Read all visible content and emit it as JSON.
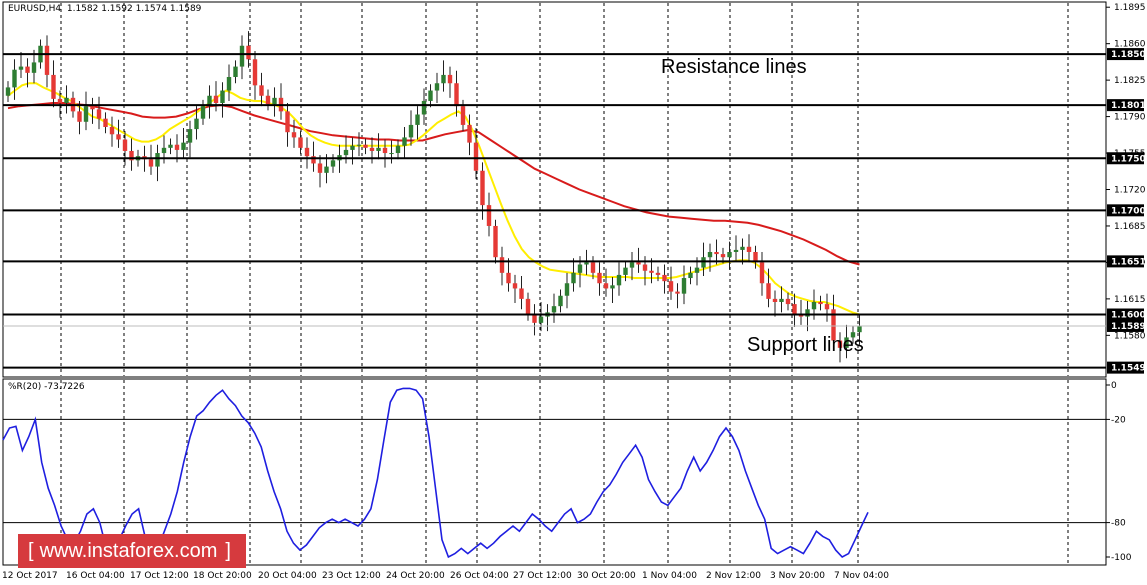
{
  "header": {
    "symbol": "EURUSD,H4",
    "ohlc": "1.1582 1.1592 1.1574 1.1589",
    "indicator": "%R(20) -73.7226"
  },
  "annotations": {
    "resistance": "Resistance lines",
    "support": "Support lines"
  },
  "watermark": {
    "bracket_open": "[",
    "text": "www.instaforex.com",
    "bracket_close": "]"
  },
  "colors": {
    "bull": "#2e7d32",
    "bear": "#e53935",
    "ma_fast": "#ffee00",
    "ma_slow": "#d81b1b",
    "wpr": "#1f1fe0",
    "level_line": "#000000",
    "tag_bg": "#000000",
    "tag_text": "#ffffff",
    "watermark_bg": "#d63a3e"
  },
  "chart_data": [
    {
      "type": "candlestick",
      "title": "EURUSD,H4",
      "ylim": [
        1.154,
        1.19
      ],
      "price_ticks": [
        "1.1895",
        "1.1860",
        "1.1825",
        "1.1790",
        "1.1755",
        "1.1720",
        "1.1685",
        "1.1650",
        "1.1615",
        "1.1580"
      ],
      "x_labels": [
        "12 Oct 2017",
        "16 Oct 04:00",
        "17 Oct 12:00",
        "18 Oct 20:00",
        "20 Oct 04:00",
        "23 Oct 12:00",
        "24 Oct 20:00",
        "26 Oct 04:00",
        "27 Oct 12:00",
        "30 Oct 20:00",
        "1 Nov 04:00",
        "2 Nov 12:00",
        "3 Nov 20:00",
        "7 Nov 04:00"
      ],
      "levels": [
        {
          "label": "1.1850",
          "value": 1.185
        },
        {
          "label": "1.1801",
          "value": 1.1801
        },
        {
          "label": "1.1750",
          "value": 1.175
        },
        {
          "label": "1.1700",
          "value": 1.17
        },
        {
          "label": "1.1651",
          "value": 1.1651
        },
        {
          "label": "1.1600",
          "value": 1.16
        },
        {
          "label": "1.1549",
          "value": 1.1549
        }
      ],
      "current": {
        "label": "1.1589",
        "value": 1.1589
      },
      "closes": [
        1.1818,
        1.1835,
        1.1838,
        1.1832,
        1.1842,
        1.1858,
        1.183,
        1.1807,
        1.1803,
        1.1808,
        1.1795,
        1.1785,
        1.18,
        1.1797,
        1.1788,
        1.178,
        1.1773,
        1.1768,
        1.1757,
        1.1748,
        1.1752,
        1.1749,
        1.1742,
        1.1755,
        1.176,
        1.1763,
        1.1758,
        1.1765,
        1.1778,
        1.1788,
        1.18,
        1.181,
        1.1803,
        1.1815,
        1.1828,
        1.1838,
        1.1858,
        1.1845,
        1.182,
        1.181,
        1.1802,
        1.1808,
        1.1795,
        1.1775,
        1.177,
        1.176,
        1.1752,
        1.1745,
        1.1736,
        1.1742,
        1.1748,
        1.1753,
        1.1758,
        1.1762,
        1.1763,
        1.176,
        1.1757,
        1.176,
        1.1755,
        1.1755,
        1.1762,
        1.177,
        1.1782,
        1.1792,
        1.1805,
        1.1815,
        1.1822,
        1.183,
        1.1822,
        1.18,
        1.1782,
        1.1765,
        1.1738,
        1.1705,
        1.1685,
        1.1655,
        1.164,
        1.163,
        1.1625,
        1.1615,
        1.16,
        1.1592,
        1.1598,
        1.1602,
        1.1608,
        1.1618,
        1.163,
        1.164,
        1.1648,
        1.165,
        1.164,
        1.163,
        1.1625,
        1.1628,
        1.1638,
        1.1645,
        1.165,
        1.1648,
        1.1642,
        1.164,
        1.1638,
        1.1632,
        1.1622,
        1.162,
        1.1635,
        1.164,
        1.1645,
        1.1655,
        1.166,
        1.1658,
        1.1655,
        1.166,
        1.1662,
        1.1665,
        1.166,
        1.165,
        1.163,
        1.1615,
        1.1612,
        1.1615,
        1.161,
        1.16,
        1.1598,
        1.1605,
        1.1612,
        1.161,
        1.1605,
        1.1575,
        1.1568,
        1.1578,
        1.1583,
        1.1589
      ],
      "ma_fast": [
        1.181,
        1.1815,
        1.182,
        1.1822,
        1.1822,
        1.1818,
        1.1815,
        1.1812,
        1.1808,
        1.1805,
        1.18,
        1.1795,
        1.179,
        1.1788,
        1.1784,
        1.178,
        1.1776,
        1.1772,
        1.1768,
        1.1766,
        1.1766,
        1.1768,
        1.1772,
        1.1778,
        1.1782,
        1.1786,
        1.179,
        1.1795,
        1.18,
        1.1805,
        1.181,
        1.1815,
        1.1812,
        1.1808,
        1.1806,
        1.1805,
        1.1805,
        1.1803,
        1.1801,
        1.1798,
        1.1793,
        1.1786,
        1.1778,
        1.1772,
        1.1768,
        1.1765,
        1.1763,
        1.1762,
        1.1762,
        1.1762,
        1.1762,
        1.1762,
        1.1762,
        1.1762,
        1.1762,
        1.1762,
        1.1762,
        1.1763,
        1.1767,
        1.1772,
        1.1778,
        1.1784,
        1.1788,
        1.1792,
        1.1795,
        1.179,
        1.1777,
        1.1761,
        1.1743,
        1.1725,
        1.1707,
        1.169,
        1.1675,
        1.1663,
        1.1655,
        1.165,
        1.1646,
        1.1643,
        1.1642,
        1.1641,
        1.164,
        1.1639,
        1.1638,
        1.1637,
        1.1636,
        1.1636,
        1.1636,
        1.1636,
        1.1636,
        1.1635,
        1.1635,
        1.1635,
        1.1635,
        1.1635,
        1.1635,
        1.1636,
        1.1638,
        1.164,
        1.1642,
        1.1644,
        1.1646,
        1.1648,
        1.165,
        1.1651,
        1.1652,
        1.1652,
        1.165,
        1.1645,
        1.1638,
        1.163,
        1.1625,
        1.162,
        1.1617,
        1.1615,
        1.1613,
        1.1612,
        1.1612,
        1.161,
        1.1608,
        1.1605,
        1.1602,
        1.16
      ],
      "ma_slow": [
        1.1798,
        1.18,
        1.1801,
        1.1802,
        1.1803,
        1.1803,
        1.1802,
        1.1801,
        1.1799,
        1.1797,
        1.1795,
        1.1793,
        1.179,
        1.1789,
        1.1789,
        1.179,
        1.1793,
        1.1797,
        1.18,
        1.1801,
        1.1799,
        1.1795,
        1.1791,
        1.1788,
        1.1785,
        1.1782,
        1.1779,
        1.1776,
        1.1774,
        1.1772,
        1.1771,
        1.177,
        1.1769,
        1.1768,
        1.1768,
        1.1767,
        1.1767,
        1.1767,
        1.177,
        1.1773,
        1.1775,
        1.1777,
        1.1775,
        1.1768,
        1.1761,
        1.1754,
        1.1747,
        1.174,
        1.1735,
        1.173,
        1.1725,
        1.172,
        1.1716,
        1.1712,
        1.1708,
        1.1704,
        1.1701,
        1.1698,
        1.1696,
        1.1694,
        1.1693,
        1.1692,
        1.1691,
        1.169,
        1.169,
        1.1689,
        1.1688,
        1.1686,
        1.1683,
        1.168,
        1.1676,
        1.1672,
        1.1667,
        1.1662,
        1.1656,
        1.1651,
        1.1648
      ]
    },
    {
      "type": "line",
      "title": "%R(20) -73.7226",
      "ylim": [
        -100,
        0
      ],
      "ticks": [
        "0",
        "-20",
        "-80",
        "-100"
      ],
      "levels": [
        -20,
        -80
      ],
      "values": [
        -32,
        -25,
        -24,
        -38,
        -30,
        -20,
        -45,
        -60,
        -70,
        -82,
        -90,
        -92,
        -85,
        -75,
        -72,
        -80,
        -95,
        -98,
        -90,
        -82,
        -75,
        -72,
        -88,
        -98,
        -95,
        -85,
        -75,
        -62,
        -45,
        -30,
        -18,
        -15,
        -10,
        -6,
        -3,
        -8,
        -12,
        -18,
        -22,
        -28,
        -36,
        -50,
        -62,
        -72,
        -85,
        -92,
        -96,
        -93,
        -88,
        -83,
        -80,
        -78,
        -80,
        -78,
        -80,
        -82,
        -78,
        -72,
        -55,
        -32,
        -10,
        -3,
        -2,
        -2,
        -3,
        -8,
        -30,
        -60,
        -90,
        -100,
        -98,
        -95,
        -98,
        -95,
        -92,
        -95,
        -92,
        -88,
        -85,
        -82,
        -85,
        -80,
        -75,
        -78,
        -82,
        -85,
        -80,
        -75,
        -72,
        -80,
        -78,
        -75,
        -68,
        -62,
        -58,
        -52,
        -45,
        -40,
        -35,
        -42,
        -55,
        -62,
        -68,
        -70,
        -65,
        -60,
        -50,
        -42,
        -50,
        -45,
        -38,
        -30,
        -25,
        -30,
        -38,
        -50,
        -60,
        -70,
        -78,
        -95,
        -98,
        -96,
        -94,
        -96,
        -98,
        -92,
        -85,
        -88,
        -90,
        -96,
        -100,
        -98,
        -90,
        -82,
        -74
      ]
    }
  ]
}
